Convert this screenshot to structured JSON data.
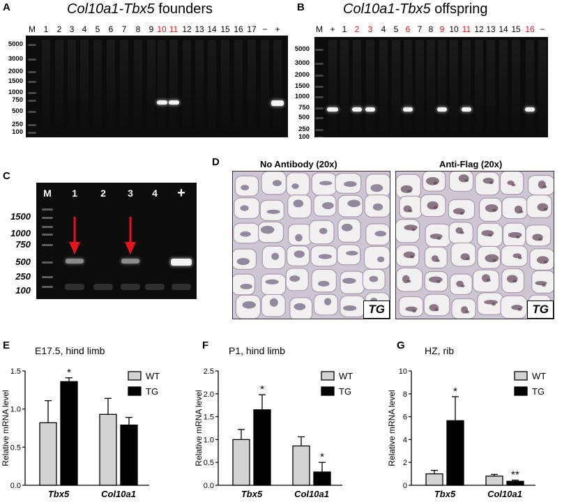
{
  "panel_a": {
    "label": "A",
    "title_gene": "Col10a1-Tbx5",
    "title_rest": "founders",
    "lanes": [
      "M",
      "1",
      "2",
      "3",
      "4",
      "5",
      "6",
      "7",
      "8",
      "9",
      "10",
      "11",
      "12",
      "13",
      "14",
      "15",
      "16",
      "17",
      "−",
      "+"
    ],
    "red_lanes": [
      "10",
      "11"
    ],
    "ladder": [
      "5000",
      "3000",
      "2000",
      "1500",
      "1000",
      "750",
      "500",
      "250",
      "100"
    ],
    "bands": [
      "10",
      "11",
      "+"
    ]
  },
  "panel_b": {
    "label": "B",
    "title_gene": "Col10a1-Tbx5",
    "title_rest": "offspring",
    "lanes": [
      "M",
      "+",
      "1",
      "2",
      "3",
      "4",
      "5",
      "6",
      "7",
      "8",
      "9",
      "10",
      "11",
      "12",
      "13",
      "14",
      "15",
      "16",
      "−"
    ],
    "red_lanes": [
      "2",
      "3",
      "6",
      "9",
      "11",
      "16"
    ],
    "ladder": [
      "5000",
      "3000",
      "2000",
      "1500",
      "1000",
      "750",
      "500",
      "250",
      "100"
    ],
    "bands": [
      "+",
      "2",
      "3",
      "6",
      "9",
      "11",
      "16"
    ]
  },
  "panel_c": {
    "label": "C",
    "lanes": [
      "M",
      "1",
      "2",
      "3",
      "4",
      "+"
    ],
    "ladder": [
      "1500",
      "1000",
      "750",
      "500",
      "250",
      "100"
    ],
    "arrow_lanes": [
      "1",
      "3"
    ]
  },
  "panel_d": {
    "label": "D",
    "left_title": "No Antibody (20x)",
    "right_title": "Anti-Flag (20x)",
    "tag": "TG"
  },
  "legend": {
    "wt": "WT",
    "tg": "TG"
  },
  "colors": {
    "wt": "#d3d3d3",
    "tg": "#000000",
    "red_label": "#e01010",
    "arrow": "#e8141a"
  },
  "chart_data": [
    {
      "label": "E",
      "type": "bar",
      "title": "E17.5, hind limb",
      "ylabel": "Relative mRNA level",
      "categories": [
        "Tbx5",
        "Col10a1"
      ],
      "ylim": [
        0,
        1.5
      ],
      "yticks": [
        "0.0",
        "0.5",
        "1.0",
        "1.5"
      ],
      "series": [
        {
          "name": "WT",
          "values": [
            0.82,
            0.93
          ],
          "errors": [
            0.29,
            0.21
          ]
        },
        {
          "name": "TG",
          "values": [
            1.36,
            0.79
          ],
          "errors": [
            0.05,
            0.1
          ]
        }
      ],
      "annotations": [
        {
          "category": "Tbx5",
          "series": "TG",
          "text": "*"
        }
      ]
    },
    {
      "label": "F",
      "type": "bar",
      "title": "P1, hind limb",
      "ylabel": "Relative mRNA level",
      "categories": [
        "Tbx5",
        "Col10a1"
      ],
      "ylim": [
        0,
        2.5
      ],
      "yticks": [
        "0.0",
        "0.5",
        "1.0",
        "1.5",
        "2.0",
        "2.5"
      ],
      "series": [
        {
          "name": "WT",
          "values": [
            1.0,
            0.86
          ],
          "errors": [
            0.22,
            0.2
          ]
        },
        {
          "name": "TG",
          "values": [
            1.65,
            0.29
          ],
          "errors": [
            0.33,
            0.21
          ]
        }
      ],
      "annotations": [
        {
          "category": "Tbx5",
          "series": "TG",
          "text": "*"
        },
        {
          "category": "Col10a1",
          "series": "TG",
          "text": "*"
        }
      ]
    },
    {
      "label": "G",
      "type": "bar",
      "title": "HZ, rib",
      "ylabel": "Relative mRNA level",
      "categories": [
        "Tbx5",
        "Col10a1"
      ],
      "ylim": [
        0,
        10
      ],
      "yticks": [
        "0",
        "2",
        "4",
        "6",
        "8",
        "10"
      ],
      "series": [
        {
          "name": "WT",
          "values": [
            1.0,
            0.8
          ],
          "errors": [
            0.3,
            0.15
          ]
        },
        {
          "name": "TG",
          "values": [
            5.65,
            0.35
          ],
          "errors": [
            2.1,
            0.1
          ]
        }
      ],
      "annotations": [
        {
          "category": "Tbx5",
          "series": "TG",
          "text": "*"
        },
        {
          "category": "Col10a1",
          "series": "TG",
          "text": "**"
        }
      ]
    }
  ]
}
